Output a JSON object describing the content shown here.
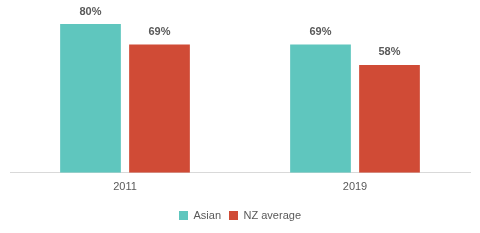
{
  "chart_data": {
    "type": "bar",
    "categories": [
      "2011",
      "2019"
    ],
    "series": [
      {
        "name": "Asian",
        "color": "#5fc6be",
        "values": [
          80,
          69
        ],
        "value_labels": [
          "80%",
          "69%"
        ]
      },
      {
        "name": "NZ average",
        "color": "#d04b36",
        "values": [
          69,
          58
        ],
        "value_labels": [
          "69%",
          "58%"
        ]
      }
    ],
    "ylim": [
      0,
      80
    ],
    "grid": false,
    "legend": "bottom",
    "data_labels": true,
    "tick_labels": "x"
  }
}
